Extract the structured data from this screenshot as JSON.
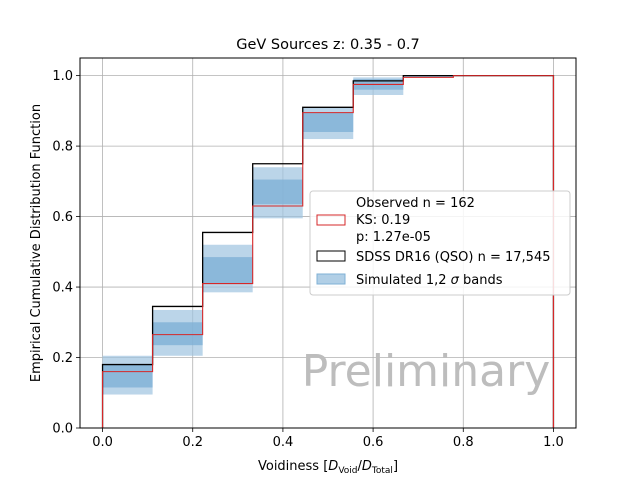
{
  "chart_data": {
    "type": "step",
    "title": "GeV Sources z: 0.35 - 0.7",
    "xlabel_prefix": "Voidiness [",
    "xlabel_D": "D",
    "xlabel_void": "Void",
    "xlabel_slash": "/",
    "xlabel_total": "Total",
    "xlabel_suffix": "]",
    "ylabel": "Empirical Cumulative Distribution Function",
    "xlim": [
      -0.05,
      1.05
    ],
    "ylim": [
      0.0,
      1.05
    ],
    "xticks": [
      0.0,
      0.2,
      0.4,
      0.6,
      0.8,
      1.0
    ],
    "xtick_labels": [
      "0.0",
      "0.2",
      "0.4",
      "0.6",
      "0.8",
      "1.0"
    ],
    "yticks": [
      0.0,
      0.2,
      0.4,
      0.6,
      0.8,
      1.0
    ],
    "ytick_labels": [
      "0.0",
      "0.2",
      "0.4",
      "0.6",
      "0.8",
      "1.0"
    ],
    "grid": true,
    "bin_edges": [
      0.0,
      0.111,
      0.222,
      0.333,
      0.444,
      0.556,
      0.667,
      0.778,
      1.0
    ],
    "observed": {
      "values": [
        0.16,
        0.265,
        0.41,
        0.63,
        0.895,
        0.975,
        0.995,
        1.0
      ],
      "color": "#d62728"
    },
    "sdss": {
      "values": [
        0.18,
        0.345,
        0.555,
        0.75,
        0.91,
        0.985,
        1.0,
        1.0
      ],
      "color": "#000000"
    },
    "band_2sigma": {
      "low": [
        0.095,
        0.205,
        0.385,
        0.595,
        0.82,
        0.945,
        0.995,
        1.0
      ],
      "high": [
        0.205,
        0.335,
        0.52,
        0.74,
        0.91,
        0.995,
        1.0,
        1.0
      ],
      "color": "#9ec3e0"
    },
    "band_1sigma": {
      "low": [
        0.115,
        0.235,
        0.41,
        0.635,
        0.84,
        0.96,
        0.997,
        1.0
      ],
      "high": [
        0.18,
        0.3,
        0.485,
        0.705,
        0.895,
        0.99,
        1.0,
        1.0
      ],
      "color": "#7fb0d6"
    },
    "legend": {
      "placement": "center-right",
      "observed_line1": "Observed n = 162",
      "observed_line2": "KS: 0.19",
      "observed_line3": "p: 1.27e-05",
      "sdss_label": "SDSS DR16 (QSO) n = 17,545",
      "sim_prefix": "Simulated 1,2 ",
      "sim_sigma": "σ",
      "sim_suffix": " bands"
    },
    "watermark": "Preliminary"
  }
}
